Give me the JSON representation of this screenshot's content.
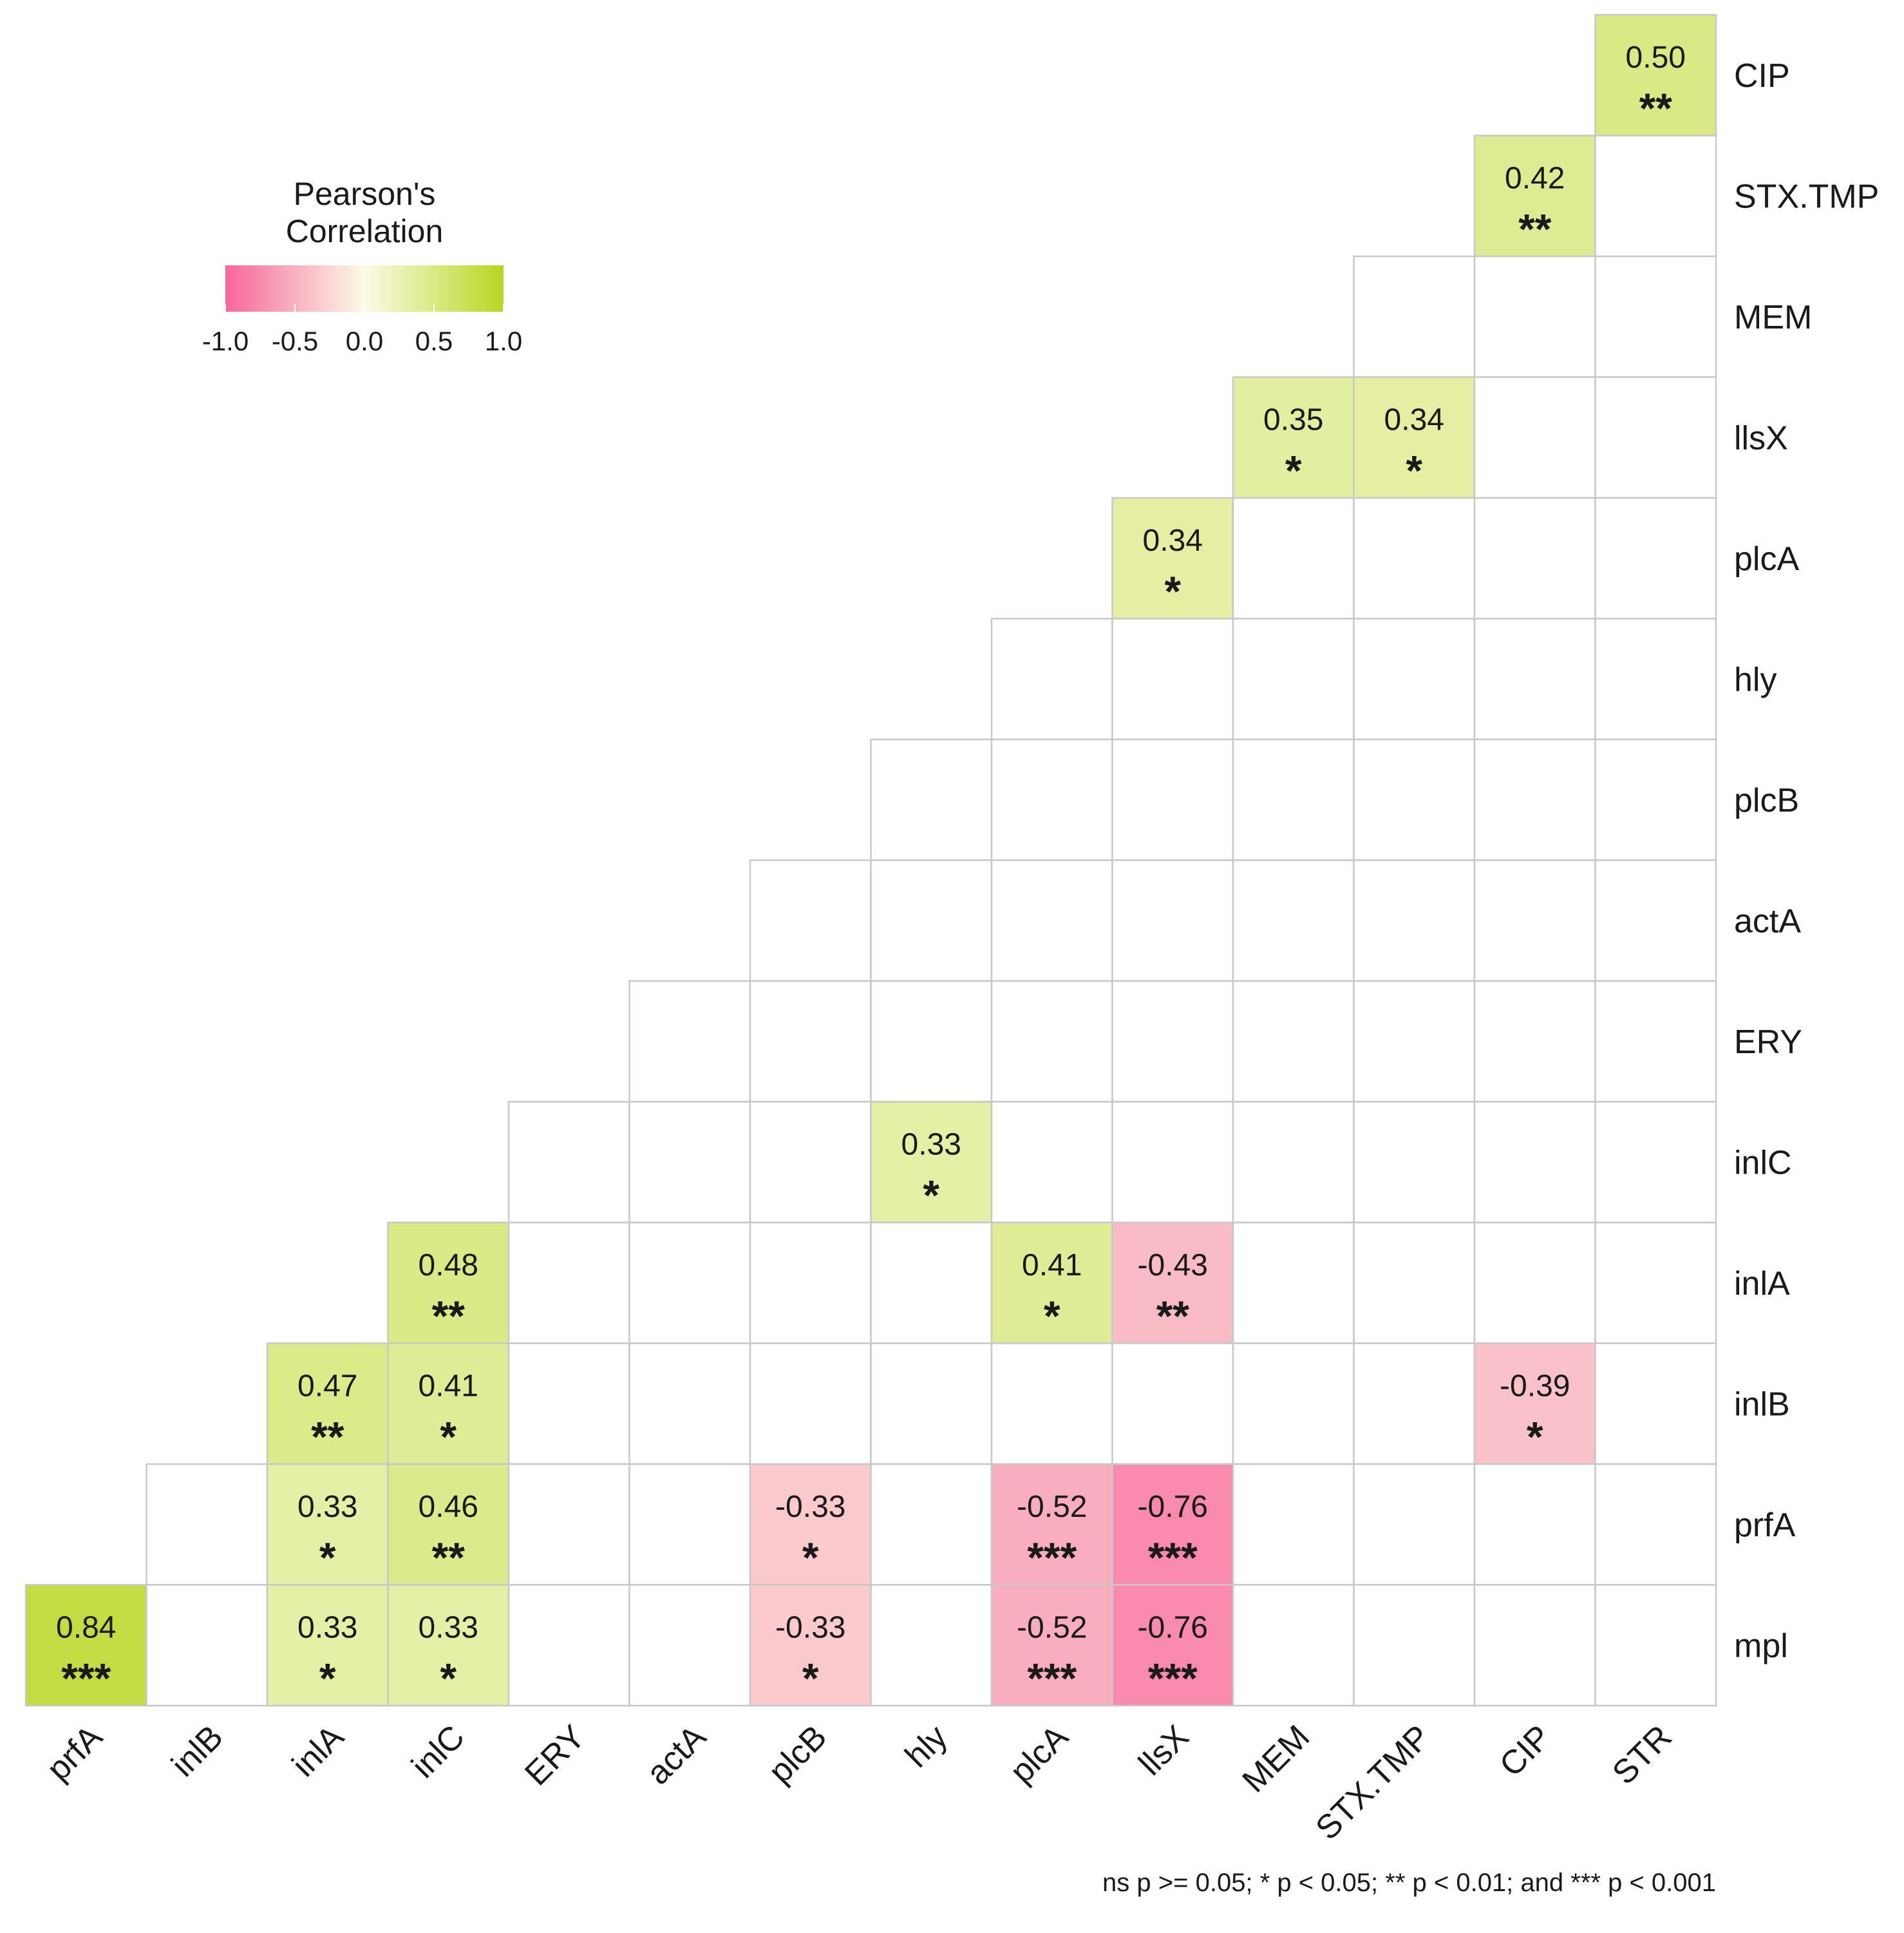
{
  "chart_data": {
    "type": "heatmap",
    "subtype": "lower-triangle correlation matrix",
    "x_labels": [
      "prfA",
      "inlB",
      "inlA",
      "inlC",
      "ERY",
      "actA",
      "plcB",
      "hly",
      "plcA",
      "llsX",
      "MEM",
      "STX.TMP",
      "CIP",
      "STR"
    ],
    "y_labels": [
      "CIP",
      "STX.TMP",
      "MEM",
      "llsX",
      "plcA",
      "hly",
      "plcB",
      "actA",
      "ERY",
      "inlC",
      "inlA",
      "inlB",
      "prfA",
      "mpl"
    ],
    "significant_cells": [
      {
        "row": "CIP",
        "col": "STR",
        "r": 0.5,
        "r_label": "0.50",
        "sig": "**"
      },
      {
        "row": "STX.TMP",
        "col": "CIP",
        "r": 0.42,
        "r_label": "0.42",
        "sig": "**"
      },
      {
        "row": "llsX",
        "col": "MEM",
        "r": 0.35,
        "r_label": "0.35",
        "sig": "*"
      },
      {
        "row": "llsX",
        "col": "STX.TMP",
        "r": 0.34,
        "r_label": "0.34",
        "sig": "*"
      },
      {
        "row": "plcA",
        "col": "llsX",
        "r": 0.34,
        "r_label": "0.34",
        "sig": "*"
      },
      {
        "row": "inlC",
        "col": "hly",
        "r": 0.33,
        "r_label": "0.33",
        "sig": "*"
      },
      {
        "row": "inlA",
        "col": "inlC",
        "r": 0.48,
        "r_label": "0.48",
        "sig": "**"
      },
      {
        "row": "inlA",
        "col": "plcA",
        "r": 0.41,
        "r_label": "0.41",
        "sig": "*"
      },
      {
        "row": "inlA",
        "col": "llsX",
        "r": -0.43,
        "r_label": "-0.43",
        "sig": "**"
      },
      {
        "row": "inlB",
        "col": "inlA",
        "r": 0.47,
        "r_label": "0.47",
        "sig": "**"
      },
      {
        "row": "inlB",
        "col": "inlC",
        "r": 0.41,
        "r_label": "0.41",
        "sig": "*"
      },
      {
        "row": "inlB",
        "col": "CIP",
        "r": -0.39,
        "r_label": "-0.39",
        "sig": "*"
      },
      {
        "row": "prfA",
        "col": "inlA",
        "r": 0.33,
        "r_label": "0.33",
        "sig": "*"
      },
      {
        "row": "prfA",
        "col": "inlC",
        "r": 0.46,
        "r_label": "0.46",
        "sig": "**"
      },
      {
        "row": "prfA",
        "col": "plcB",
        "r": -0.33,
        "r_label": "-0.33",
        "sig": "*"
      },
      {
        "row": "prfA",
        "col": "plcA",
        "r": -0.52,
        "r_label": "-0.52",
        "sig": "***"
      },
      {
        "row": "prfA",
        "col": "llsX",
        "r": -0.76,
        "r_label": "-0.76",
        "sig": "***"
      },
      {
        "row": "mpl",
        "col": "prfA",
        "r": 0.84,
        "r_label": "0.84",
        "sig": "***"
      },
      {
        "row": "mpl",
        "col": "inlA",
        "r": 0.33,
        "r_label": "0.33",
        "sig": "*"
      },
      {
        "row": "mpl",
        "col": "inlC",
        "r": 0.33,
        "r_label": "0.33",
        "sig": "*"
      },
      {
        "row": "mpl",
        "col": "plcB",
        "r": -0.33,
        "r_label": "-0.33",
        "sig": "*"
      },
      {
        "row": "mpl",
        "col": "plcA",
        "r": -0.52,
        "r_label": "-0.52",
        "sig": "***"
      },
      {
        "row": "mpl",
        "col": "llsX",
        "r": -0.76,
        "r_label": "-0.76",
        "sig": "***"
      }
    ],
    "legend": {
      "title_line1": "Pearson's",
      "title_line2": "Correlation",
      "ticks": [
        "-1.0",
        "-0.5",
        "0.0",
        "0.5",
        "1.0"
      ],
      "tick_values": [
        -1.0,
        -0.5,
        0.0,
        0.5,
        1.0
      ],
      "range": [
        -1.0,
        1.0
      ],
      "placement": "top-left"
    },
    "colors": {
      "negative": "#f7669b",
      "zero": "#fbfbe6",
      "positive": "#b9d621",
      "grid": "#c8c8c8"
    },
    "footnote": "ns p >= 0.05; * p < 0.05; ** p < 0.01; and *** p < 0.001"
  }
}
